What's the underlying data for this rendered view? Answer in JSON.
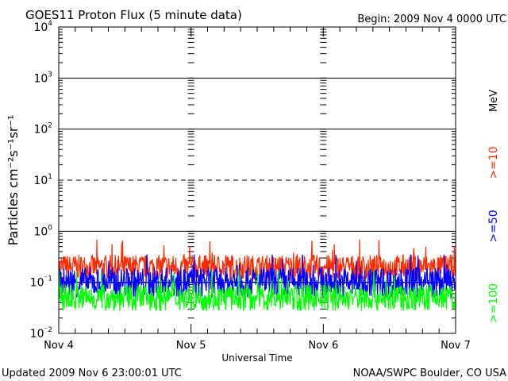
{
  "header": {
    "title": "GOES11 Proton Flux (5 minute data)",
    "begin": "Begin: 2009 Nov 4 0000 UTC"
  },
  "footer": {
    "updated": "Updated 2009 Nov  6 23:00:01 UTC",
    "credit": "NOAA/SWPC Boulder, CO USA"
  },
  "chart_data": {
    "type": "line",
    "ylabel": "Particles cm⁻²s⁻¹sr⁻¹",
    "xlabel": "Universal Time",
    "yscale": "log",
    "ylim": [
      0.01,
      10000
    ],
    "xlim": [
      0,
      3
    ],
    "x_tick_labels": [
      "Nov 4",
      "Nov 5",
      "Nov 6",
      "Nov 7"
    ],
    "y_tick_exponents": [
      -2,
      -1,
      0,
      1,
      2,
      3,
      4
    ],
    "solid_gridlines": [
      1,
      100,
      1000
    ],
    "dashed_gridlines": [
      10
    ],
    "reference_lines": [
      0.1
    ],
    "energy_unit": "MeV",
    "series": [
      {
        "name": ">=10",
        "color": "#ff2a00",
        "median": 0.2,
        "spread": 0.12,
        "min": 0.1,
        "max": 0.7
      },
      {
        "name": ">=50",
        "color": "#0000ff",
        "median": 0.1,
        "spread": 0.15,
        "min": 0.05,
        "max": 0.35
      },
      {
        "name": ">=100",
        "color": "#00ff00",
        "median": 0.05,
        "spread": 0.13,
        "min": 0.025,
        "max": 0.18
      }
    ]
  }
}
